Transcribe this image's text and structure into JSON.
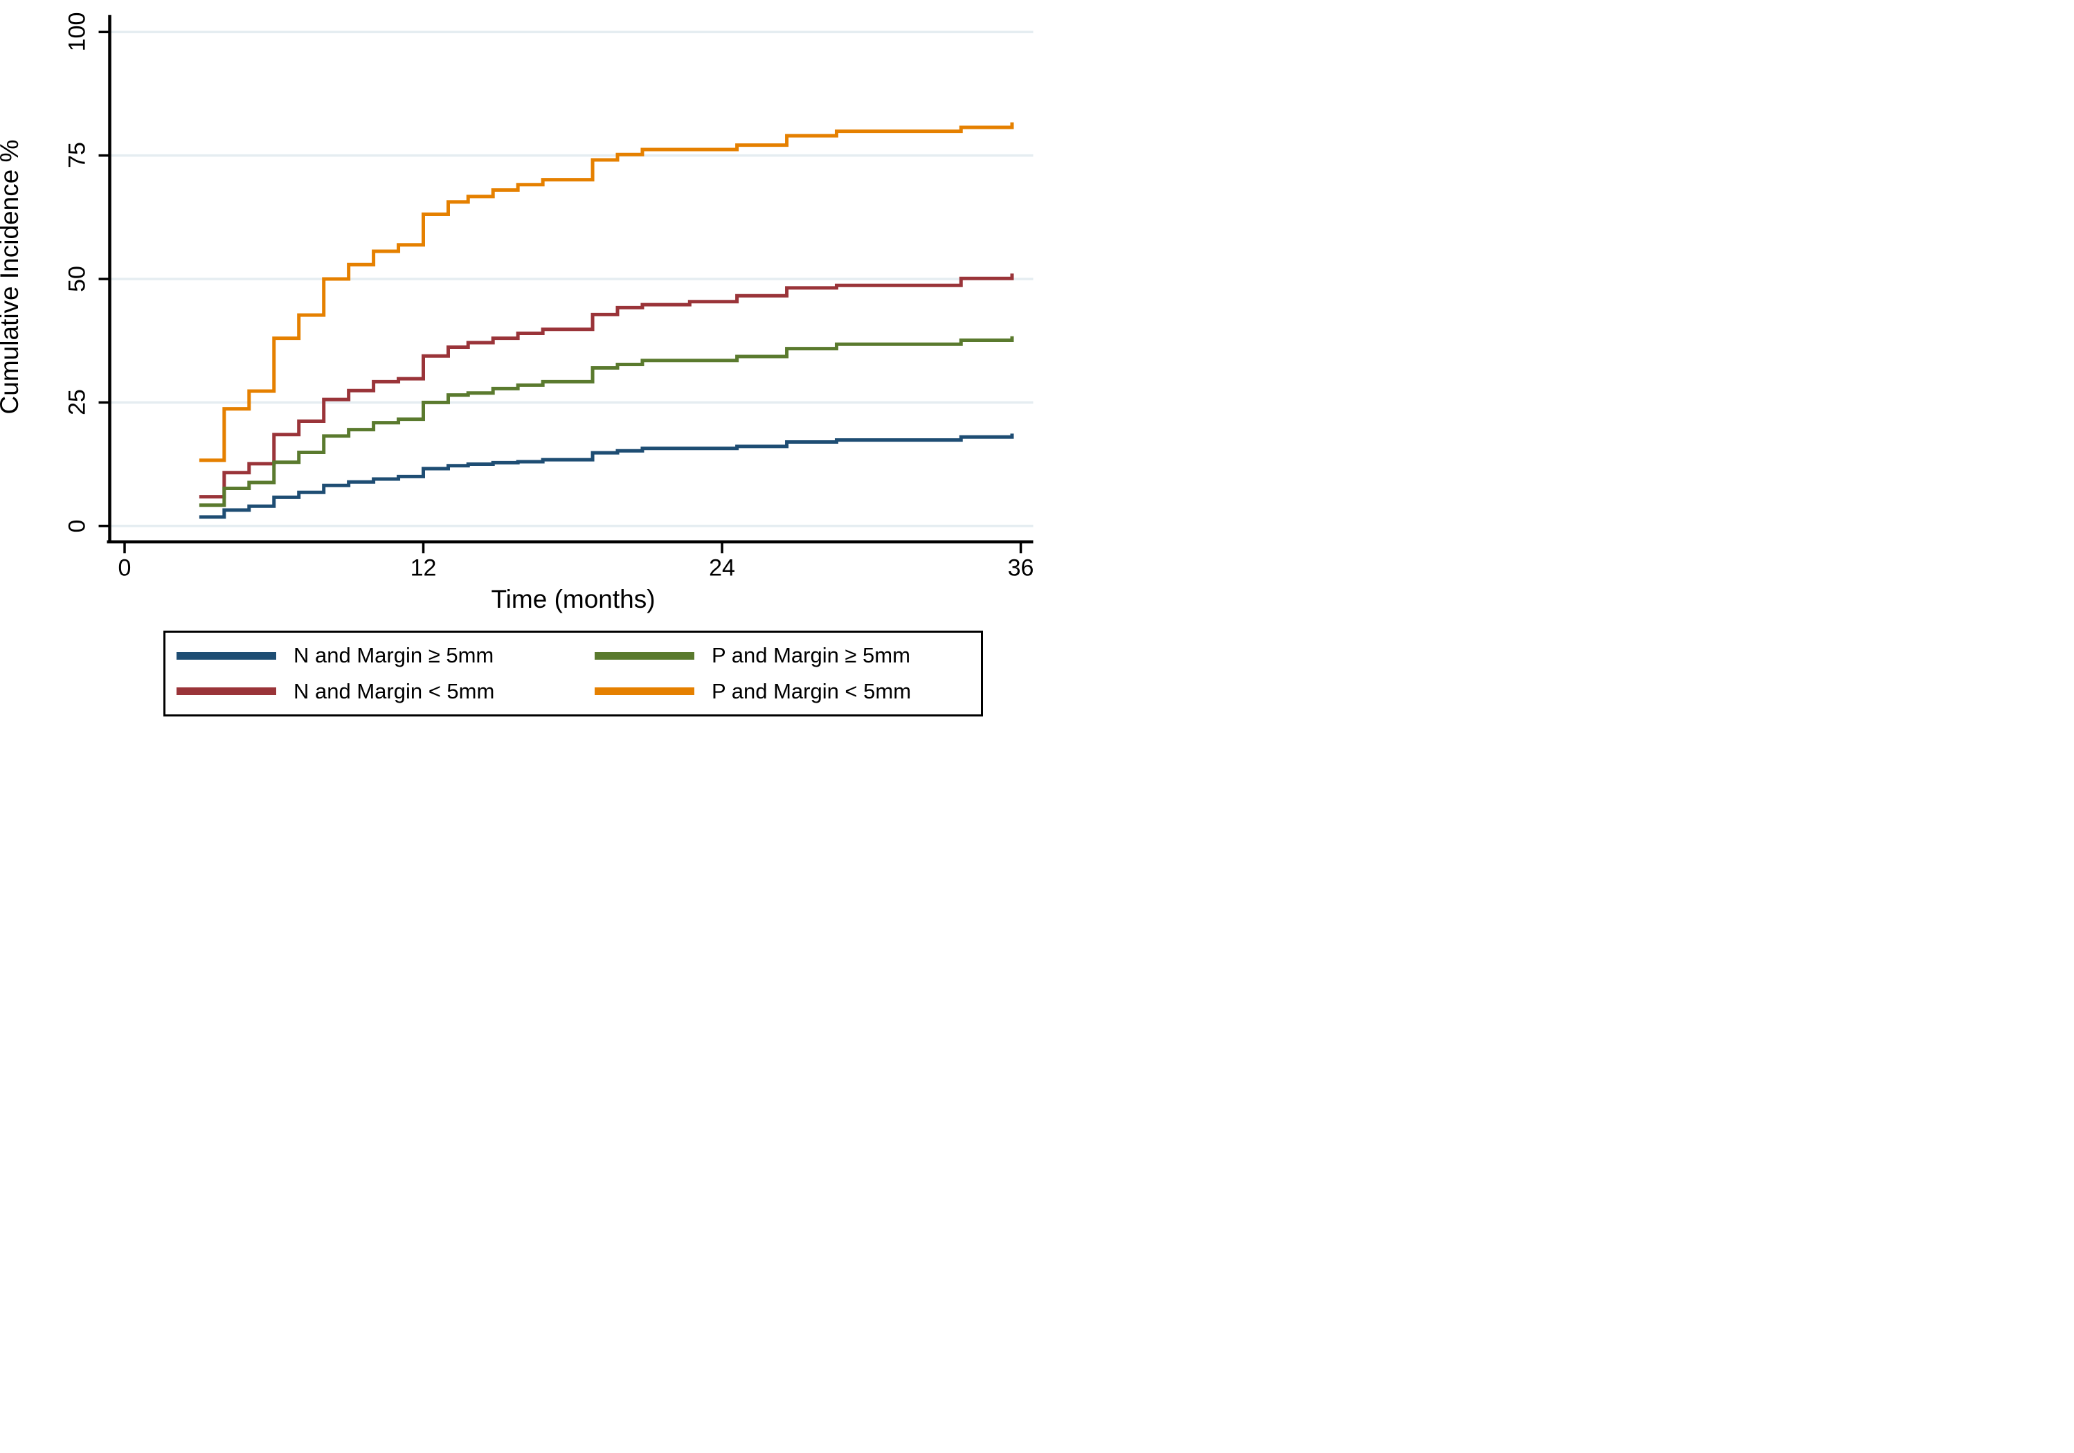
{
  "chart_data": {
    "type": "line",
    "subtype": "step-cumulative-incidence",
    "title": "",
    "xlabel": "Time (months)",
    "ylabel": "Cumulative Incidence %",
    "xlim": [
      0,
      36
    ],
    "ylim": [
      0,
      100
    ],
    "xticks": [
      0,
      12,
      24,
      36
    ],
    "yticks": [
      0,
      25,
      50,
      75,
      100
    ],
    "grid": "horizontal-gridlines-at-yticks",
    "gridline_color": "#e5edf1",
    "axis_color": "#000000",
    "legend_position": "bottom",
    "curves_start_at_month": 3,
    "series": [
      {
        "name": "N and Margin ≥ 5mm",
        "color": "#1e4d73",
        "points": [
          [
            3,
            1.8
          ],
          [
            4,
            3.2
          ],
          [
            5,
            4.0
          ],
          [
            6,
            5.8
          ],
          [
            7,
            6.8
          ],
          [
            8,
            8.2
          ],
          [
            9,
            8.9
          ],
          [
            10,
            9.5
          ],
          [
            11,
            10.0
          ],
          [
            12,
            11.6
          ],
          [
            13,
            12.2
          ],
          [
            13.8,
            12.5
          ],
          [
            14.8,
            12.8
          ],
          [
            15.8,
            13.0
          ],
          [
            16.8,
            13.4
          ],
          [
            18.8,
            14.8
          ],
          [
            19.8,
            15.2
          ],
          [
            20.8,
            15.7
          ],
          [
            24.6,
            16.1
          ],
          [
            26.6,
            17.0
          ],
          [
            28.6,
            17.4
          ],
          [
            33.6,
            18.0
          ],
          [
            35.65,
            18.7
          ]
        ]
      },
      {
        "name": "N and Margin < 5mm",
        "color": "#9a3439",
        "points": [
          [
            3,
            5.9
          ],
          [
            4,
            10.8
          ],
          [
            5,
            12.6
          ],
          [
            6,
            18.5
          ],
          [
            7,
            21.2
          ],
          [
            8,
            25.6
          ],
          [
            9,
            27.4
          ],
          [
            10,
            29.2
          ],
          [
            11,
            29.8
          ],
          [
            12,
            34.4
          ],
          [
            13,
            36.2
          ],
          [
            13.8,
            37.1
          ],
          [
            14.8,
            38.0
          ],
          [
            15.8,
            39.0
          ],
          [
            16.8,
            39.8
          ],
          [
            18.8,
            42.8
          ],
          [
            19.8,
            44.2
          ],
          [
            20.8,
            44.8
          ],
          [
            22.7,
            45.4
          ],
          [
            24.6,
            46.6
          ],
          [
            26.6,
            48.2
          ],
          [
            28.6,
            48.7
          ],
          [
            33.6,
            50.1
          ],
          [
            35.65,
            51.1
          ]
        ]
      },
      {
        "name": "P and Margin ≥ 5mm",
        "color": "#5a7a2e",
        "points": [
          [
            3,
            4.2
          ],
          [
            4,
            7.6
          ],
          [
            5,
            8.8
          ],
          [
            6,
            12.9
          ],
          [
            7,
            14.9
          ],
          [
            8,
            18.2
          ],
          [
            9,
            19.5
          ],
          [
            10,
            20.9
          ],
          [
            11,
            21.6
          ],
          [
            12,
            25.0
          ],
          [
            13,
            26.5
          ],
          [
            13.8,
            26.9
          ],
          [
            14.8,
            27.8
          ],
          [
            15.8,
            28.5
          ],
          [
            16.8,
            29.2
          ],
          [
            18.8,
            32.0
          ],
          [
            19.8,
            32.7
          ],
          [
            20.8,
            33.5
          ],
          [
            24.6,
            34.3
          ],
          [
            26.6,
            35.9
          ],
          [
            28.6,
            36.8
          ],
          [
            33.6,
            37.6
          ],
          [
            35.65,
            38.4
          ]
        ]
      },
      {
        "name": "P and Margin < 5mm",
        "color": "#e58000",
        "points": [
          [
            3,
            13.3
          ],
          [
            4,
            23.7
          ],
          [
            5,
            27.3
          ],
          [
            6,
            38.0
          ],
          [
            7,
            42.7
          ],
          [
            8,
            50.0
          ],
          [
            9,
            52.9
          ],
          [
            10,
            55.6
          ],
          [
            11,
            56.9
          ],
          [
            12,
            63.1
          ],
          [
            13,
            65.6
          ],
          [
            13.8,
            66.7
          ],
          [
            14.8,
            68.0
          ],
          [
            15.8,
            69.1
          ],
          [
            16.8,
            70.1
          ],
          [
            18.8,
            74.1
          ],
          [
            19.8,
            75.2
          ],
          [
            20.8,
            76.2
          ],
          [
            24.6,
            77.1
          ],
          [
            26.6,
            79.0
          ],
          [
            28.6,
            79.9
          ],
          [
            33.6,
            80.7
          ],
          [
            35.65,
            81.7
          ]
        ]
      }
    ]
  },
  "legend": {
    "rows": [
      [
        "N and Margin ≥ 5mm",
        "P and Margin ≥ 5mm"
      ],
      [
        "N and Margin < 5mm",
        "P and Margin < 5mm"
      ]
    ]
  }
}
